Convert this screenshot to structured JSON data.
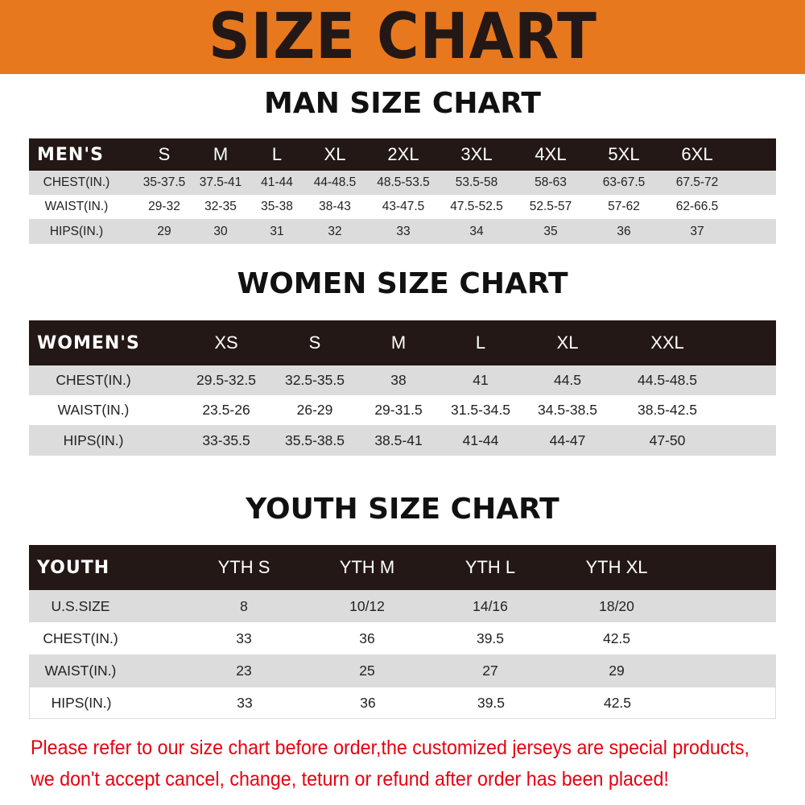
{
  "banner": {
    "title": "SIZE CHART",
    "color": "#E8781E"
  },
  "men": {
    "title": "MAN SIZE CHART",
    "header": [
      "MEN'S",
      "S",
      "M",
      "L",
      "XL",
      "2XL",
      "3XL",
      "4XL",
      "5XL",
      "6XL"
    ],
    "rows": [
      [
        "CHEST(IN.)",
        "35-37.5",
        "37.5-41",
        "41-44",
        "44-48.5",
        "48.5-53.5",
        "53.5-58",
        "58-63",
        "63-67.5",
        "67.5-72"
      ],
      [
        "WAIST(IN.)",
        "29-32",
        "32-35",
        "35-38",
        "38-43",
        "43-47.5",
        "47.5-52.5",
        "52.5-57",
        "57-62",
        "62-66.5"
      ],
      [
        "HIPS(IN.)",
        "29",
        "30",
        "31",
        "32",
        "33",
        "34",
        "35",
        "36",
        "37"
      ]
    ]
  },
  "women": {
    "title": "WOMEN SIZE CHART",
    "header": [
      "WOMEN'S",
      "XS",
      "S",
      "M",
      "L",
      "XL",
      "XXL"
    ],
    "rows": [
      [
        "CHEST(IN.)",
        "29.5-32.5",
        "32.5-35.5",
        "38",
        "41",
        "44.5",
        "44.5-48.5"
      ],
      [
        "WAIST(IN.)",
        "23.5-26",
        "26-29",
        "29-31.5",
        "31.5-34.5",
        "34.5-38.5",
        "38.5-42.5"
      ],
      [
        "HIPS(IN.)",
        "33-35.5",
        "35.5-38.5",
        "38.5-41",
        "41-44",
        "44-47",
        "47-50"
      ]
    ]
  },
  "youth": {
    "title": "YOUTH SIZE CHART",
    "header": [
      "YOUTH",
      "YTH S",
      "YTH M",
      "YTH L",
      "YTH XL"
    ],
    "rows": [
      [
        "U.S.SIZE",
        "8",
        "10/12",
        "14/16",
        "18/20"
      ],
      [
        "CHEST(IN.)",
        "33",
        "36",
        "39.5",
        "42.5"
      ],
      [
        "WAIST(IN.)",
        "23",
        "25",
        "27",
        "29"
      ],
      [
        "HIPS(IN.)",
        "33",
        "36",
        "39.5",
        "42.5"
      ]
    ]
  },
  "note": {
    "line1": "Please refer to our size chart before order,the customized jerseys are special products,",
    "line2": "we don't accept cancel, change, teturn or refund after order has been placed!",
    "color": "#E60012"
  }
}
